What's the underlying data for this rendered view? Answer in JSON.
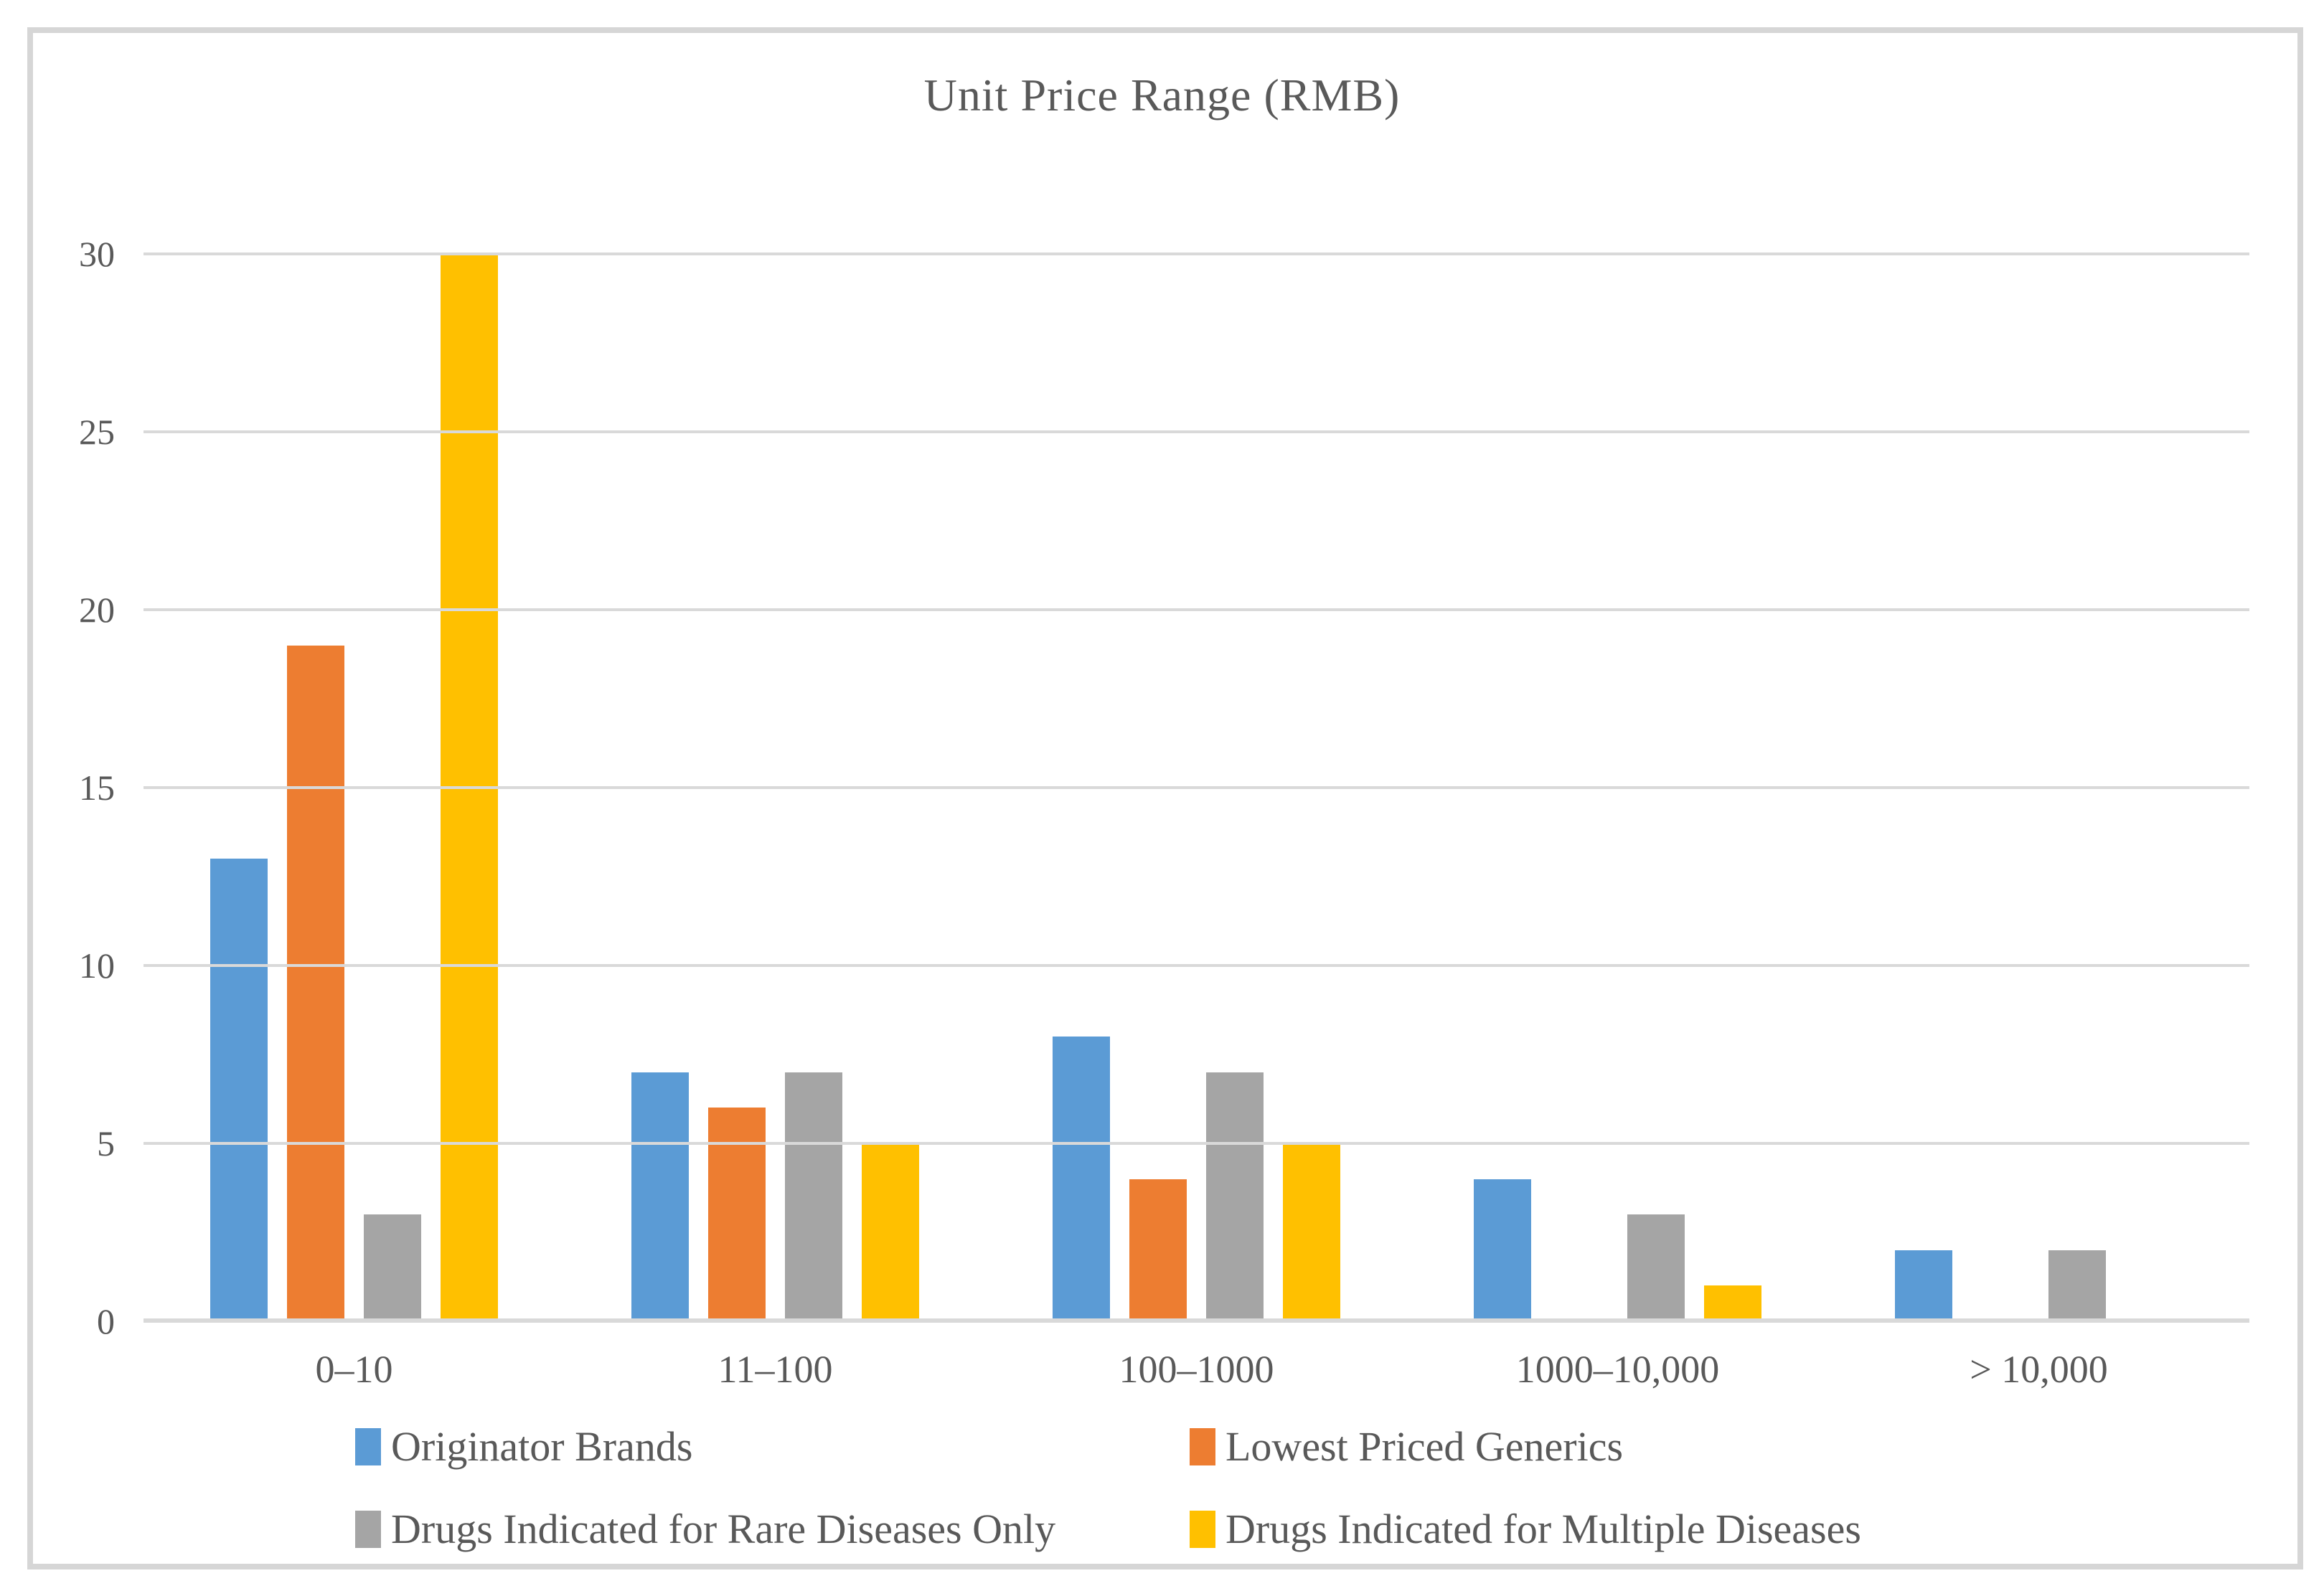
{
  "frame": {
    "border_color": "#d6d6d6",
    "background": "#ffffff"
  },
  "chart_data": {
    "type": "bar",
    "title": "Unit Price Range (RMB)",
    "categories": [
      "0–10",
      "11–100",
      "100–1000",
      "1000–10,000",
      "> 10,000"
    ],
    "series": [
      {
        "name": "Originator Brands",
        "color": "#5B9BD5",
        "values": [
          13,
          7,
          8,
          4,
          2
        ]
      },
      {
        "name": "Lowest Priced Generics",
        "color": "#ED7D31",
        "values": [
          19,
          6,
          4,
          0,
          0
        ]
      },
      {
        "name": "Drugs Indicated for Rare Diseases Only",
        "color": "#A5A5A5",
        "values": [
          3,
          7,
          7,
          3,
          2
        ]
      },
      {
        "name": "Drugs Indicated for Multiple Diseases",
        "color": "#FFC000",
        "values": [
          30,
          5,
          5,
          1,
          0
        ]
      }
    ],
    "ylim": [
      0,
      30
    ],
    "yticks": [
      0,
      5,
      10,
      15,
      20,
      25,
      30
    ],
    "grid": "horizontal",
    "gridline_color": "#d9d9d9",
    "text_color": "#595959",
    "legend_position": "bottom",
    "legend_rows": [
      [
        "Originator Brands",
        "Lowest Priced Generics"
      ],
      [
        "Drugs Indicated for Rare Diseases Only",
        "Drugs Indicated for Multiple Diseases"
      ]
    ]
  }
}
